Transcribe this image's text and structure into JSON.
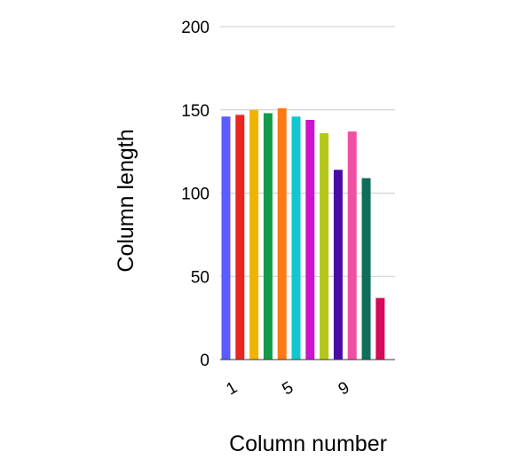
{
  "chart_data": {
    "type": "bar",
    "title": "",
    "xlabel": "Column number",
    "ylabel": "Column length",
    "categories": [
      "1",
      "2",
      "3",
      "4",
      "5",
      "6",
      "7",
      "8",
      "9",
      "10",
      "11",
      "12"
    ],
    "x_tick_labels": [
      "1",
      "5",
      "9"
    ],
    "values": [
      146,
      147,
      150,
      148,
      151,
      146,
      144,
      136,
      114,
      137,
      109,
      37
    ],
    "bar_colors": [
      "#5b5bff",
      "#e8251f",
      "#f0b400",
      "#139a4a",
      "#ff7a14",
      "#12c8cc",
      "#cc14cc",
      "#b5c81a",
      "#4a0aa8",
      "#f04fa4",
      "#0e6e5a",
      "#d8095a"
    ],
    "ylim": [
      0,
      200
    ],
    "y_ticks": [
      0,
      50,
      100,
      150,
      200
    ],
    "grid": true,
    "grid_color": "#cccccc",
    "legend": "none"
  }
}
